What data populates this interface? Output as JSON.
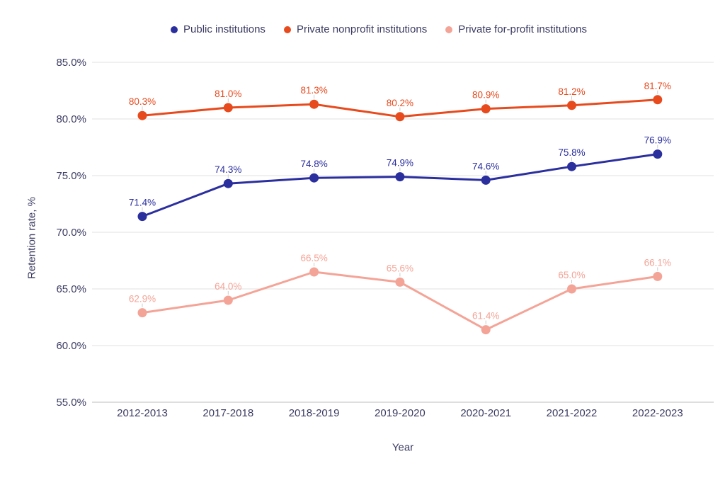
{
  "chart_data": {
    "type": "line",
    "title": "",
    "xlabel": "Year",
    "ylabel": "Retention rate, %",
    "ylim": [
      55,
      85
    ],
    "ytick_step": 5,
    "yticks": [
      {
        "value": 85,
        "label": "85.0%"
      },
      {
        "value": 80,
        "label": "80.0%"
      },
      {
        "value": 75,
        "label": "75.0%"
      },
      {
        "value": 70,
        "label": "70.0%"
      },
      {
        "value": 65,
        "label": "65.0%"
      },
      {
        "value": 60,
        "label": "60.0%"
      },
      {
        "value": 55,
        "label": "55.0%"
      }
    ],
    "categories": [
      "2012-2013",
      "2017-2018",
      "2018-2019",
      "2019-2020",
      "2020-2021",
      "2021-2022",
      "2022-2023"
    ],
    "grid": true,
    "legend_position": "top-center",
    "series": [
      {
        "name": "Public institutions",
        "color": "#2b2f9e",
        "values": [
          71.4,
          74.3,
          74.8,
          74.9,
          74.6,
          75.8,
          76.9
        ],
        "labels": [
          "71.4%",
          "74.3%",
          "74.8%",
          "74.9%",
          "74.6%",
          "75.8%",
          "76.9%"
        ]
      },
      {
        "name": "Private nonprofit institutions",
        "color": "#e74a1d",
        "values": [
          80.3,
          81.0,
          81.3,
          80.2,
          80.9,
          81.2,
          81.7
        ],
        "labels": [
          "80.3%",
          "81.0%",
          "81.3%",
          "80.2%",
          "80.9%",
          "81.2%",
          "81.7%"
        ]
      },
      {
        "name": "Private for-profit institutions",
        "color": "#f4a497",
        "values": [
          62.9,
          64.0,
          66.5,
          65.6,
          61.4,
          65.0,
          66.1
        ],
        "labels": [
          "62.9%",
          "64.0%",
          "66.5%",
          "65.6%",
          "61.4%",
          "65.0%",
          "66.1%"
        ]
      }
    ]
  },
  "colors": {
    "background": "#ffffff",
    "axis_text": "#3b3b63",
    "grid_line": "#e8e8e8",
    "baseline": "#d4d4d4",
    "leader_line": "#cccccc"
  }
}
